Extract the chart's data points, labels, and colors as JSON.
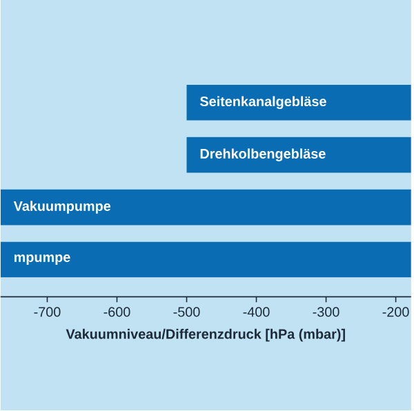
{
  "chart_data": {
    "type": "bar",
    "orientation": "horizontal",
    "xlabel": "Vakuumniveau/Differenzdruck    [hPa (mbar)]",
    "categories": [
      "Seitenkanalgebläse",
      "Drehkolbengebläse",
      "Vakuumpumpe",
      "mpumpe"
    ],
    "base": [
      -500,
      -500,
      -767,
      -767
    ],
    "values": [
      322,
      322,
      589,
      589
    ],
    "color": "#0a6db3",
    "xlim": [
      -767,
      -178
    ],
    "xticks": [
      -700,
      -600,
      -500,
      -400,
      -300,
      -200
    ]
  }
}
